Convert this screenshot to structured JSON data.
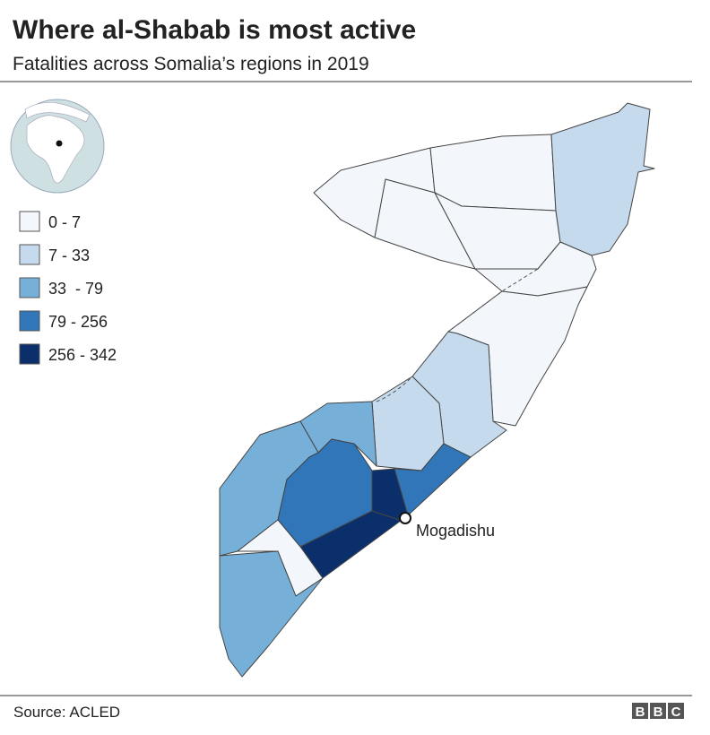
{
  "header": {
    "title": "Where al-Shabab is most active",
    "subtitle": "Fatalities across Somalia’s regions in 2019"
  },
  "legend": [
    {
      "label": "0 - 7",
      "color": "#f3f7fc"
    },
    {
      "label": "7 - 33",
      "color": "#c6daee"
    },
    {
      "label": "33  - 79",
      "color": "#76b0d8"
    },
    {
      "label": "79 - 256",
      "color": "#3076b8"
    },
    {
      "label": "256 - 342",
      "color": "#0b2f6b"
    }
  ],
  "labels": {
    "city": "Mogadishu"
  },
  "footer": {
    "source": "Source: ACLED",
    "logo": [
      "B",
      "B",
      "C"
    ]
  }
}
